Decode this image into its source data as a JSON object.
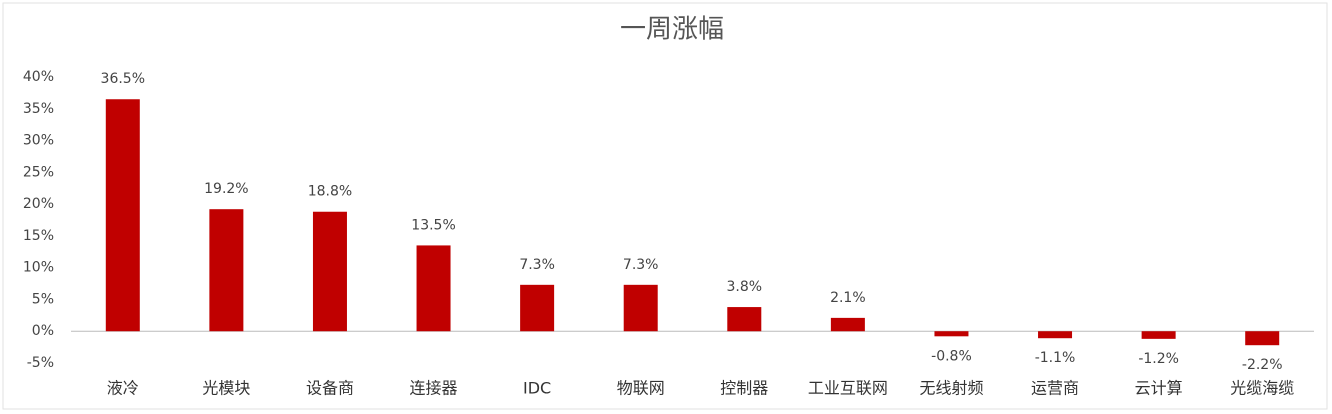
{
  "chart_data": {
    "type": "bar",
    "title": "一周涨幅",
    "categories": [
      "液冷",
      "光模块",
      "设备商",
      "连接器",
      "IDC",
      "物联网",
      "控制器",
      "工业互联网",
      "无线射频",
      "运营商",
      "云计算",
      "光缆海缆"
    ],
    "values": [
      36.5,
      19.2,
      18.8,
      13.5,
      7.3,
      7.3,
      3.8,
      2.1,
      -0.8,
      -1.1,
      -1.2,
      -2.2
    ],
    "value_labels": [
      "36.5%",
      "19.2%",
      "18.8%",
      "13.5%",
      "7.3%",
      "7.3%",
      "3.8%",
      "2.1%",
      "-0.8%",
      "-1.1%",
      "-1.2%",
      "-2.2%"
    ],
    "color": "#c00000",
    "ylim": [
      -5,
      40
    ],
    "yticks": [
      {
        "value": -5,
        "label": "-5%"
      },
      {
        "value": 0,
        "label": "0%"
      },
      {
        "value": 5,
        "label": "5%"
      },
      {
        "value": 10,
        "label": "10%"
      },
      {
        "value": 15,
        "label": "15%"
      },
      {
        "value": 20,
        "label": "20%"
      },
      {
        "value": 25,
        "label": "25%"
      },
      {
        "value": 30,
        "label": "30%"
      },
      {
        "value": 35,
        "label": "35%"
      },
      {
        "value": 40,
        "label": "40%"
      }
    ],
    "grid": false
  }
}
